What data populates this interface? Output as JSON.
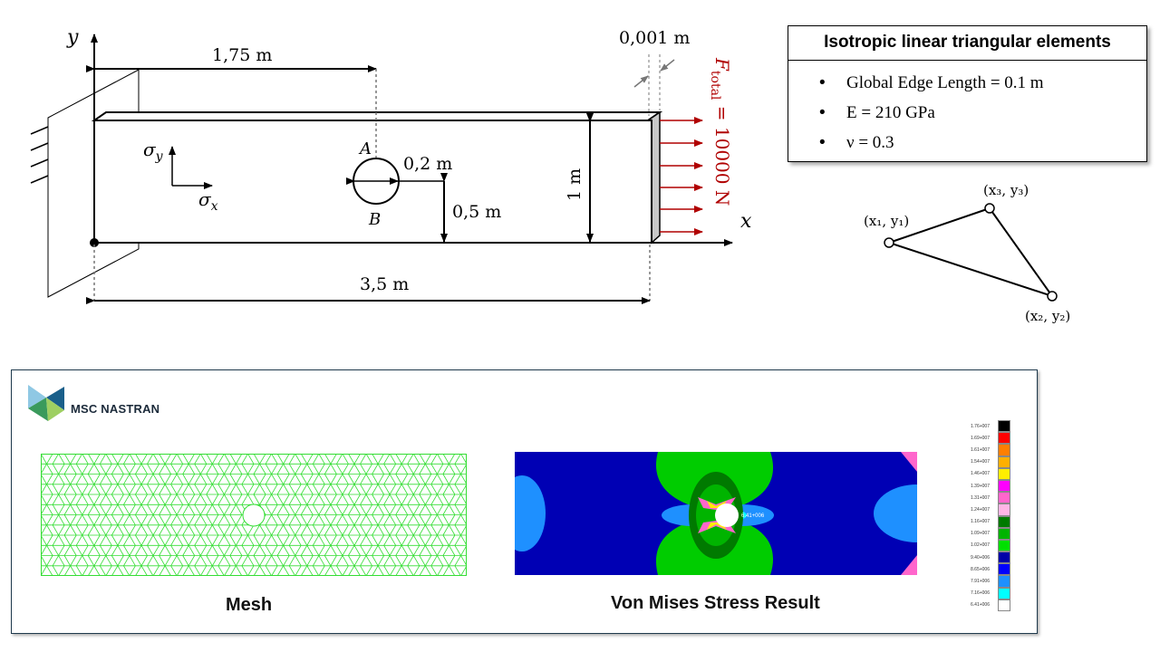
{
  "dims": {
    "half_length": "1,75 m",
    "thickness": "0,001 m",
    "hole_radius": "0,2 m",
    "hole_center_height": "0,5 m",
    "height": "1 m",
    "length": "3,5 m"
  },
  "axes": {
    "x": "x",
    "y": "y"
  },
  "stress": {
    "sx_base": "σ",
    "sx_sub": "x",
    "sy_base": "σ",
    "sy_sub": "y"
  },
  "points": {
    "a": "A",
    "b": "B"
  },
  "force": {
    "base": "F",
    "sub": "total",
    "value": " = 10000 N"
  },
  "element_box": {
    "title": "Isotropic linear triangular elements",
    "items": [
      "Global Edge Length = 0.1 m",
      "E = 210 GPa",
      "ν = 0.3"
    ]
  },
  "triangle": {
    "node1": "(x₁, y₁)",
    "node2": "(x₂, y₂)",
    "node3": "(x₃, y₃)"
  },
  "panel": {
    "brand": "MSC NASTRAN",
    "mesh_caption": "Mesh",
    "result_caption": "Von Mises Stress Result",
    "legend_labels": [
      "1.76+007",
      "1.69+007",
      "1.61+007",
      "1.54+007",
      "1.46+007",
      "1.39+007",
      "1.31+007",
      "1.24+007",
      "1.16+007",
      "1.09+007",
      "1.02+007",
      "9.40+006",
      "8.65+006",
      "7.91+006",
      "7.16+006",
      "6.41+006"
    ],
    "legend_colors": [
      "#000000",
      "#ff0000",
      "#ff7f00",
      "#ffb000",
      "#ffee00",
      "#ff00ff",
      "#ff66cc",
      "#ffb6e6",
      "#007a00",
      "#00b400",
      "#00e000",
      "#0000a8",
      "#0000ff",
      "#1e90ff",
      "#00ffff",
      "#ffffff"
    ],
    "probe_label": "6.41+006"
  }
}
